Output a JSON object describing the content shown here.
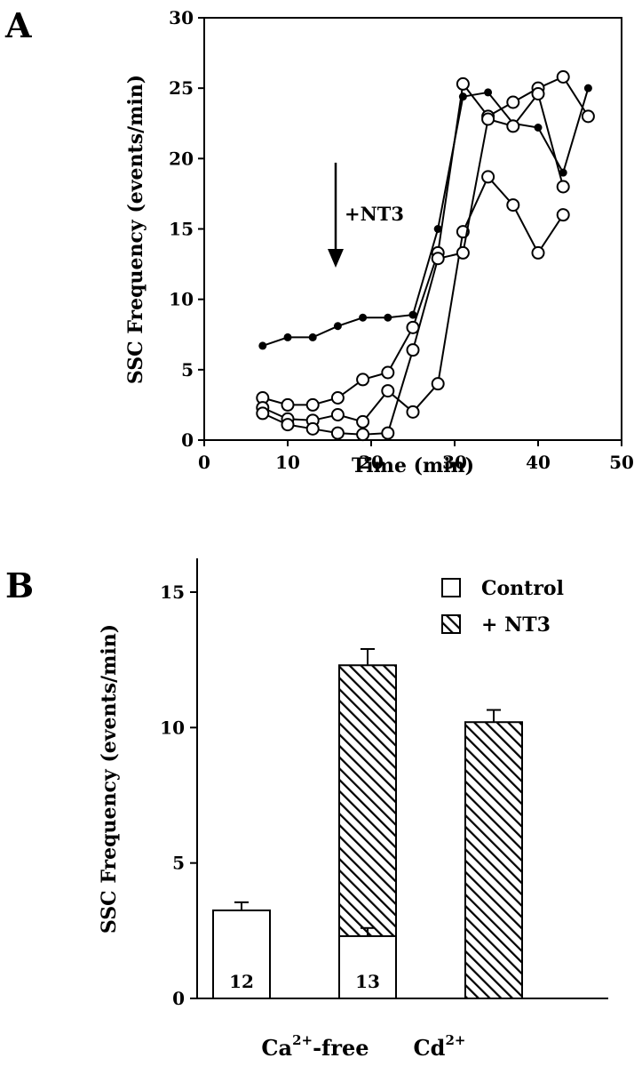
{
  "chart_data": [
    {
      "panel": "A",
      "type": "line",
      "xlabel": "Time (min)",
      "ylabel": "SSC Frequency (events/min)",
      "xlim": [
        0,
        50
      ],
      "ylim": [
        0,
        30
      ],
      "xticks": [
        0,
        10,
        20,
        30,
        40,
        50
      ],
      "yticks": [
        0,
        5,
        10,
        15,
        20,
        25,
        30
      ],
      "annotation": {
        "text": "+NT3",
        "x": 16,
        "y_from": 19.5,
        "y_to": 12.5
      },
      "series": [
        {
          "marker": "filled",
          "x": [
            7,
            10,
            13,
            16,
            19,
            22,
            25,
            28,
            31,
            34,
            37,
            40,
            43,
            46
          ],
          "y": [
            6.7,
            7.3,
            7.3,
            8.1,
            8.7,
            8.7,
            8.9,
            15,
            24.4,
            24.7,
            22.5,
            22.2,
            19,
            25
          ]
        },
        {
          "marker": "open",
          "x": [
            7,
            10,
            13,
            16,
            19,
            22,
            25,
            28,
            31,
            34,
            37,
            40,
            43,
            46
          ],
          "y": [
            3,
            2.5,
            2.5,
            3,
            4.3,
            4.8,
            8,
            13.3,
            25.3,
            23,
            24,
            25,
            25.8,
            23
          ]
        },
        {
          "marker": "open",
          "x": [
            7,
            10,
            13,
            16,
            19,
            22,
            25,
            28,
            31,
            34,
            37,
            40,
            43
          ],
          "y": [
            2.3,
            1.5,
            1.4,
            1.8,
            1.3,
            3.5,
            2,
            4,
            14.8,
            18.7,
            16.7,
            13.3,
            16
          ]
        },
        {
          "marker": "open",
          "x": [
            7,
            10,
            13,
            16,
            19,
            22,
            25,
            28,
            31,
            34,
            37,
            40,
            43
          ],
          "y": [
            1.9,
            1.1,
            0.8,
            0.5,
            0.4,
            0.5,
            6.4,
            12.9,
            13.3,
            22.8,
            22.3,
            24.6,
            18
          ]
        }
      ]
    },
    {
      "panel": "B",
      "type": "bar",
      "ylabel": "SSC Frequency (events/min)",
      "ylim": [
        0,
        16
      ],
      "yticks": [
        0,
        5,
        10,
        15
      ],
      "categories": [
        "Ca2+-free",
        "Cd2+"
      ],
      "category_labels": [
        {
          "base": "Ca",
          "sup": "2+",
          "suffix": "-free"
        },
        {
          "base": "Cd",
          "sup": "2+",
          "suffix": ""
        }
      ],
      "series": [
        {
          "name": "Control",
          "values": [
            3.25,
            2.3
          ],
          "errors": [
            0.3,
            0.3
          ],
          "counts": [
            "12",
            "13"
          ]
        },
        {
          "name": "+ NT3",
          "values": [
            12.3,
            10.2
          ],
          "errors": [
            0.6,
            0.45
          ]
        }
      ]
    }
  ]
}
